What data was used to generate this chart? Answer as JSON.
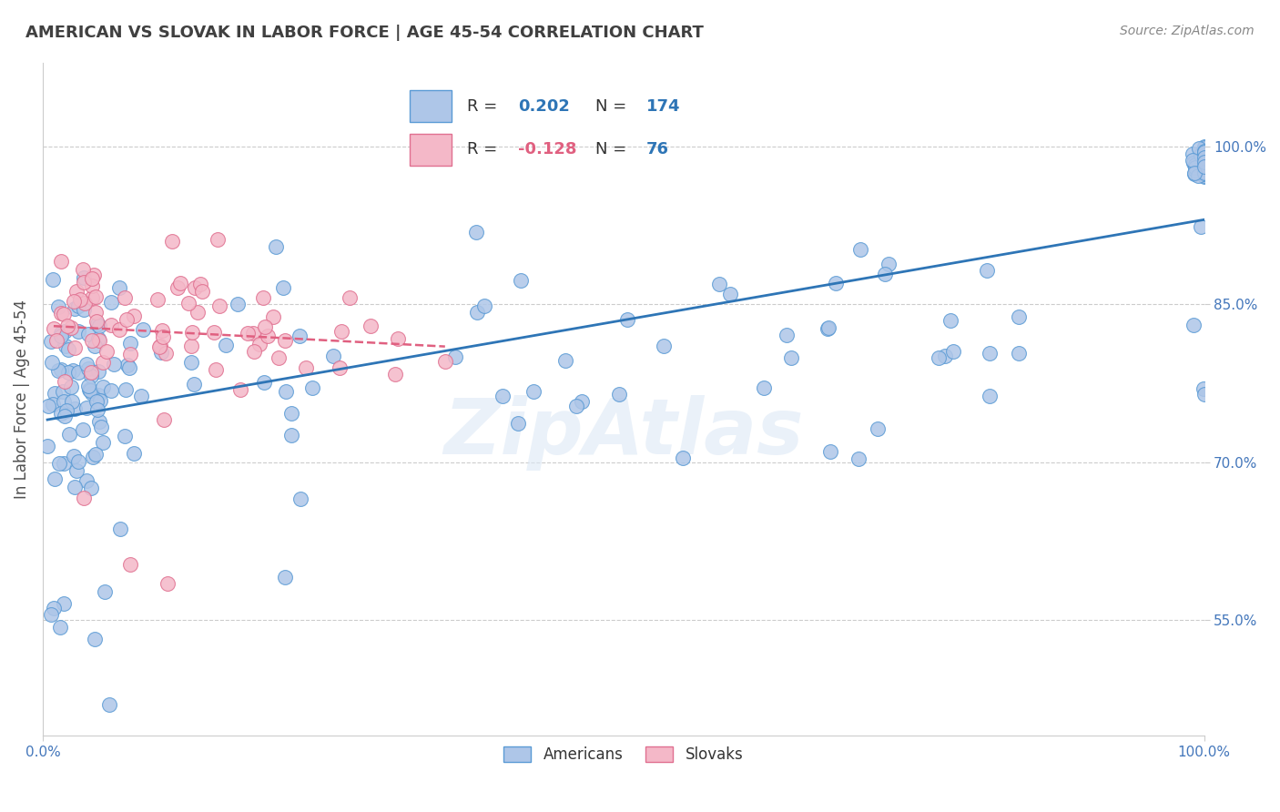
{
  "title": "AMERICAN VS SLOVAK IN LABOR FORCE | AGE 45-54 CORRELATION CHART",
  "source": "Source: ZipAtlas.com",
  "ylabel": "In Labor Force | Age 45-54",
  "xlim": [
    0.0,
    1.0
  ],
  "ylim": [
    0.44,
    1.08
  ],
  "ytick_labels": [
    "55.0%",
    "70.0%",
    "85.0%",
    "100.0%"
  ],
  "ytick_values": [
    0.55,
    0.7,
    0.85,
    1.0
  ],
  "xtick_labels": [
    "0.0%",
    "100.0%"
  ],
  "xtick_values": [
    0.0,
    1.0
  ],
  "american_R": 0.202,
  "american_N": 174,
  "slovak_R": -0.128,
  "slovak_N": 76,
  "american_color": "#aec6e8",
  "american_edge_color": "#5b9bd5",
  "slovak_color": "#f4b8c8",
  "slovak_edge_color": "#e07090",
  "american_line_color": "#2e75b6",
  "slovak_line_color": "#e06080",
  "legend_box_american": "#aec6e8",
  "legend_box_slovak": "#f4b8c8",
  "background_color": "#ffffff",
  "grid_color": "#cccccc",
  "title_color": "#404040",
  "source_color": "#888888",
  "label_color": "#4477bb",
  "watermark_color": "#dce8f5"
}
